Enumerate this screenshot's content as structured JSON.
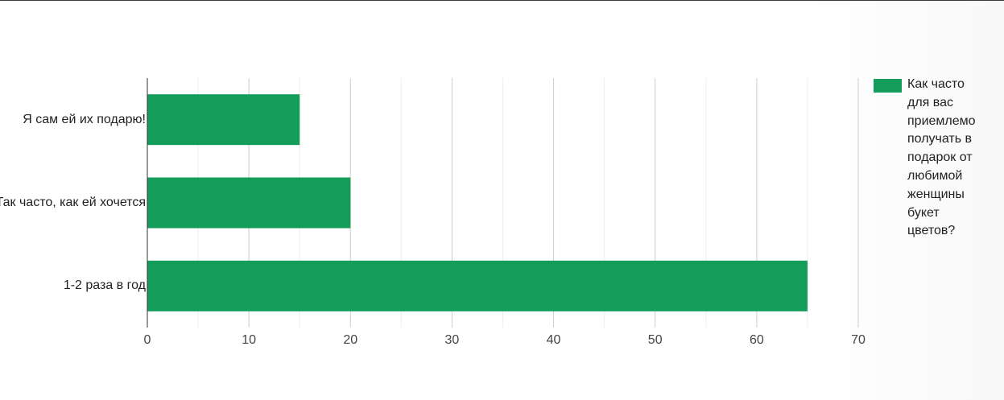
{
  "chart_data": {
    "type": "bar",
    "orientation": "horizontal",
    "categories": [
      "Я сам ей их подарю!",
      "Так часто, как ей хочется",
      "1-2 раза в год"
    ],
    "series": [
      {
        "name": "Как часто для вас приемлемо получать в подарок от любимой женщины букет цветов?",
        "values": [
          15,
          20,
          65
        ],
        "color": "#149d5a"
      }
    ],
    "xlim": [
      0,
      70
    ],
    "xticks": [
      "0",
      "10",
      "20",
      "30",
      "40",
      "50",
      "60",
      "70"
    ],
    "grid": true,
    "legend_position": "right"
  }
}
